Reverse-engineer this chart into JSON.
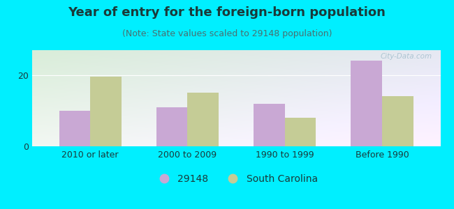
{
  "title": "Year of entry for the foreign-born population",
  "subtitle": "(Note: State values scaled to 29148 population)",
  "categories": [
    "2010 or later",
    "2000 to 2009",
    "1990 to 1999",
    "Before 1990"
  ],
  "values_29148": [
    10,
    11,
    12,
    24
  ],
  "values_sc": [
    19.5,
    15,
    8,
    14
  ],
  "bar_color_29148": "#c9a8d4",
  "bar_color_sc": "#c5cc96",
  "background_outer": "#00efff",
  "ylim": [
    0,
    27
  ],
  "yticks": [
    0,
    20
  ],
  "legend_label_1": "29148",
  "legend_label_2": "South Carolina",
  "title_fontsize": 13,
  "subtitle_fontsize": 9,
  "tick_fontsize": 9,
  "legend_fontsize": 10,
  "bar_width": 0.32,
  "watermark": "City-Data.com",
  "title_color": "#1a3a3a",
  "subtitle_color": "#4a7070",
  "tick_color": "#1a3a3a"
}
